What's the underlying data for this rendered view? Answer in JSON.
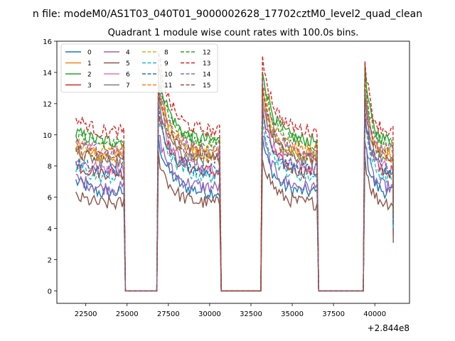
{
  "chart_data": {
    "type": "line",
    "suptitle": "n file: modeM0/AS1T03_040T01_9000002628_17702cztM0_level2_quad_clean",
    "title": "Quadrant 1 module wise count rates with 100.0s bins.",
    "xlabel": "",
    "ylabel": "",
    "x_offset_label": "+2.844e8",
    "xlim": [
      20750,
      42100
    ],
    "ylim": [
      -0.8,
      16
    ],
    "x_ticks": [
      22500,
      25000,
      27500,
      30000,
      32500,
      35000,
      37500,
      40000
    ],
    "x_tick_labels": [
      "22500",
      "25000",
      "27500",
      "30000",
      "32500",
      "35000",
      "37500",
      "40000"
    ],
    "y_ticks": [
      0,
      2,
      4,
      6,
      8,
      10,
      12,
      14,
      16
    ],
    "y_tick_labels": [
      "0",
      "2",
      "4",
      "6",
      "8",
      "10",
      "12",
      "14",
      "16"
    ],
    "grid": false,
    "legend_position": "top-left",
    "legend_columns": 4,
    "segments": [
      {
        "on_start": 21900,
        "on_end": 24800,
        "zero_start": 24900,
        "zero_end": 26800
      },
      {
        "on_start": 26900,
        "on_end": 30600,
        "zero_start": 30700,
        "zero_end": 33100
      },
      {
        "on_start": 33200,
        "on_end": 36500,
        "zero_start": 36600,
        "zero_end": 39300
      },
      {
        "on_start": 39400,
        "on_end": 41100,
        "zero_start": null,
        "zero_end": null
      }
    ],
    "series": [
      {
        "name": "0",
        "color": "#1f77b4",
        "dash": "solid",
        "level": 6.3,
        "start_level": 7.0
      },
      {
        "name": "1",
        "color": "#ff7f0e",
        "dash": "solid",
        "level": 8.6,
        "start_level": 9.0
      },
      {
        "name": "2",
        "color": "#2ca02c",
        "dash": "solid",
        "level": 9.6,
        "start_level": 10.1
      },
      {
        "name": "3",
        "color": "#d62728",
        "dash": "solid",
        "level": 7.6,
        "start_level": 8.0
      },
      {
        "name": "4",
        "color": "#9467bd",
        "dash": "solid",
        "level": 6.6,
        "start_level": 7.2
      },
      {
        "name": "5",
        "color": "#8c564b",
        "dash": "solid",
        "level": 5.6,
        "start_level": 6.0
      },
      {
        "name": "6",
        "color": "#e377c2",
        "dash": "solid",
        "level": 7.9,
        "start_level": 8.2
      },
      {
        "name": "7",
        "color": "#7f7f7f",
        "dash": "solid",
        "level": 8.3,
        "start_level": 8.8
      },
      {
        "name": "8",
        "color": "#bcbd22",
        "dash": "dashed",
        "level": 8.7,
        "start_level": 9.3
      },
      {
        "name": "9",
        "color": "#17becf",
        "dash": "dashed",
        "level": 7.3,
        "start_level": 7.8
      },
      {
        "name": "10",
        "color": "#1f77b4",
        "dash": "dashed",
        "level": 7.7,
        "start_level": 8.2
      },
      {
        "name": "11",
        "color": "#ff7f0e",
        "dash": "dashed",
        "level": 9.0,
        "start_level": 9.6
      },
      {
        "name": "12",
        "color": "#2ca02c",
        "dash": "dashed",
        "level": 9.4,
        "start_level": 10.0
      },
      {
        "name": "13",
        "color": "#d62728",
        "dash": "dashed",
        "level": 10.2,
        "start_level": 11.0
      },
      {
        "name": "14",
        "color": "#9467bd",
        "dash": "dashed",
        "level": 8.9,
        "start_level": 9.4
      },
      {
        "name": "15",
        "color": "#8c564b",
        "dash": "dashed",
        "level": 8.5,
        "start_level": 9.0
      }
    ]
  }
}
